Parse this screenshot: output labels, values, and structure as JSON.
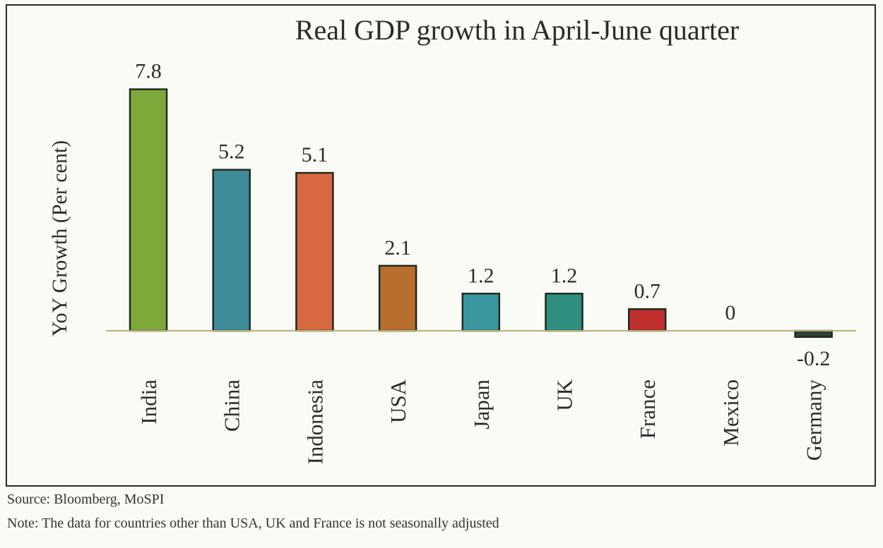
{
  "chart_data": {
    "type": "bar",
    "title": "Real GDP growth in April-June quarter",
    "ylabel": "YoY Growth (Per cent)",
    "xlabel": "",
    "categories": [
      "India",
      "China",
      "Indonesia",
      "USA",
      "Japan",
      "UK",
      "France",
      "Mexico",
      "Germany"
    ],
    "values": [
      7.8,
      5.2,
      5.1,
      2.1,
      1.2,
      1.2,
      0.7,
      0,
      -0.2
    ],
    "value_labels": [
      "7.8",
      "5.2",
      "5.1",
      "2.1",
      "1.2",
      "1.2",
      "0.7",
      "0",
      "-0.2"
    ],
    "colors": [
      "#7fa83a",
      "#3f8c9a",
      "#d8683f",
      "#b86e2e",
      "#3b97a0",
      "#2f9080",
      "#c0302d",
      "#5a7a3a",
      "#2f3f3a"
    ],
    "ylim": [
      -0.5,
      9
    ],
    "grid": false,
    "legend": "none"
  },
  "footer": {
    "source": "Source: Bloomberg, MoSPI",
    "note": "Note: The data for countries other than USA, UK and France is not seasonally adjusted"
  }
}
